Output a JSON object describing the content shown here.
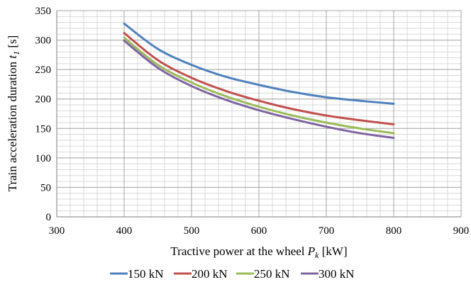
{
  "chart_data": {
    "type": "line",
    "xlabel": {
      "main": "Tractive power at the wheel ",
      "var": "P",
      "sub": "k",
      "unit": " [kW]"
    },
    "ylabel": {
      "main": "Train acceleration duration ",
      "var": "t",
      "sub": "1",
      "unit": " [s]"
    },
    "xlim": [
      300,
      900
    ],
    "ylim": [
      0,
      350
    ],
    "xticks": [
      300,
      400,
      500,
      600,
      700,
      800,
      900
    ],
    "yticks": [
      0,
      50,
      100,
      150,
      200,
      250,
      300,
      350
    ],
    "x_minor_step": 20,
    "y_minor_step": 10,
    "grid": true,
    "legend_position": "bottom",
    "x": [
      400,
      450,
      500,
      550,
      600,
      650,
      700,
      750,
      800
    ],
    "series": [
      {
        "name": "150 kN",
        "color": "#4f81bd",
        "values": [
          328,
          285,
          258,
          238,
          224,
          212,
          203,
          197,
          192
        ]
      },
      {
        "name": "200 kN",
        "color": "#c0504d",
        "values": [
          312,
          266,
          236,
          214,
          197,
          183,
          172,
          164,
          157
        ]
      },
      {
        "name": "250 kN",
        "color": "#9bbb59",
        "values": [
          304,
          258,
          228,
          205,
          187,
          172,
          160,
          150,
          142
        ]
      },
      {
        "name": "300 kN",
        "color": "#8064a2",
        "values": [
          299,
          253,
          222,
          199,
          181,
          166,
          153,
          142,
          134
        ]
      }
    ]
  }
}
